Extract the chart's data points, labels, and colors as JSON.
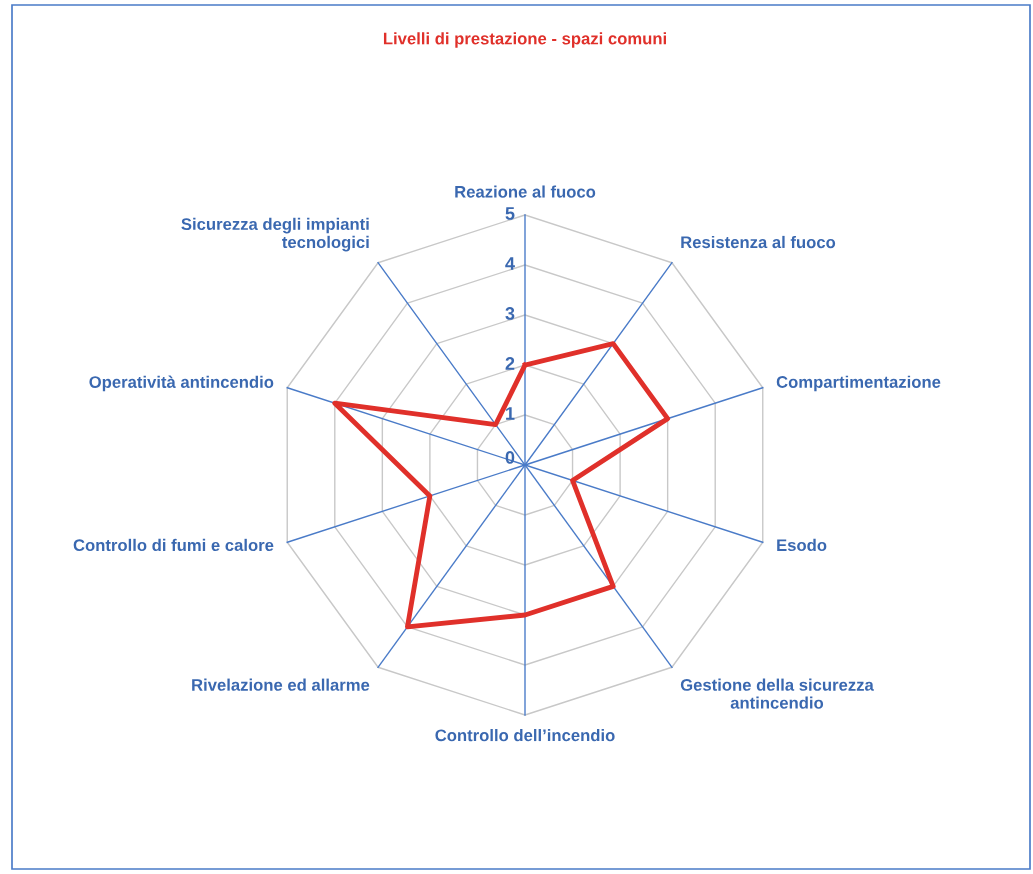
{
  "chart_data": {
    "type": "radar",
    "title": "Livelli di prestazione - spazi comuni",
    "categories": [
      "Reazione al fuoco",
      "Resistenza al fuoco",
      "Compartimentazione",
      "Esodo",
      "Gestione della sicurezza\nantincendio",
      "Controllo dell’incendio",
      "Rivelazione ed allarme",
      "Controllo di fumi e calore",
      "Operatività antincendio",
      "Sicurezza degli impianti\ntecnologici"
    ],
    "series": [
      {
        "color": "#e0302a",
        "values": [
          2,
          3,
          3,
          1,
          3,
          3,
          4,
          2,
          4,
          1
        ]
      }
    ],
    "ylim": [
      0,
      5
    ],
    "yticks": [
      0,
      1,
      2,
      3,
      4,
      5
    ],
    "grid": true,
    "marker": "none",
    "line_style": "solid"
  }
}
